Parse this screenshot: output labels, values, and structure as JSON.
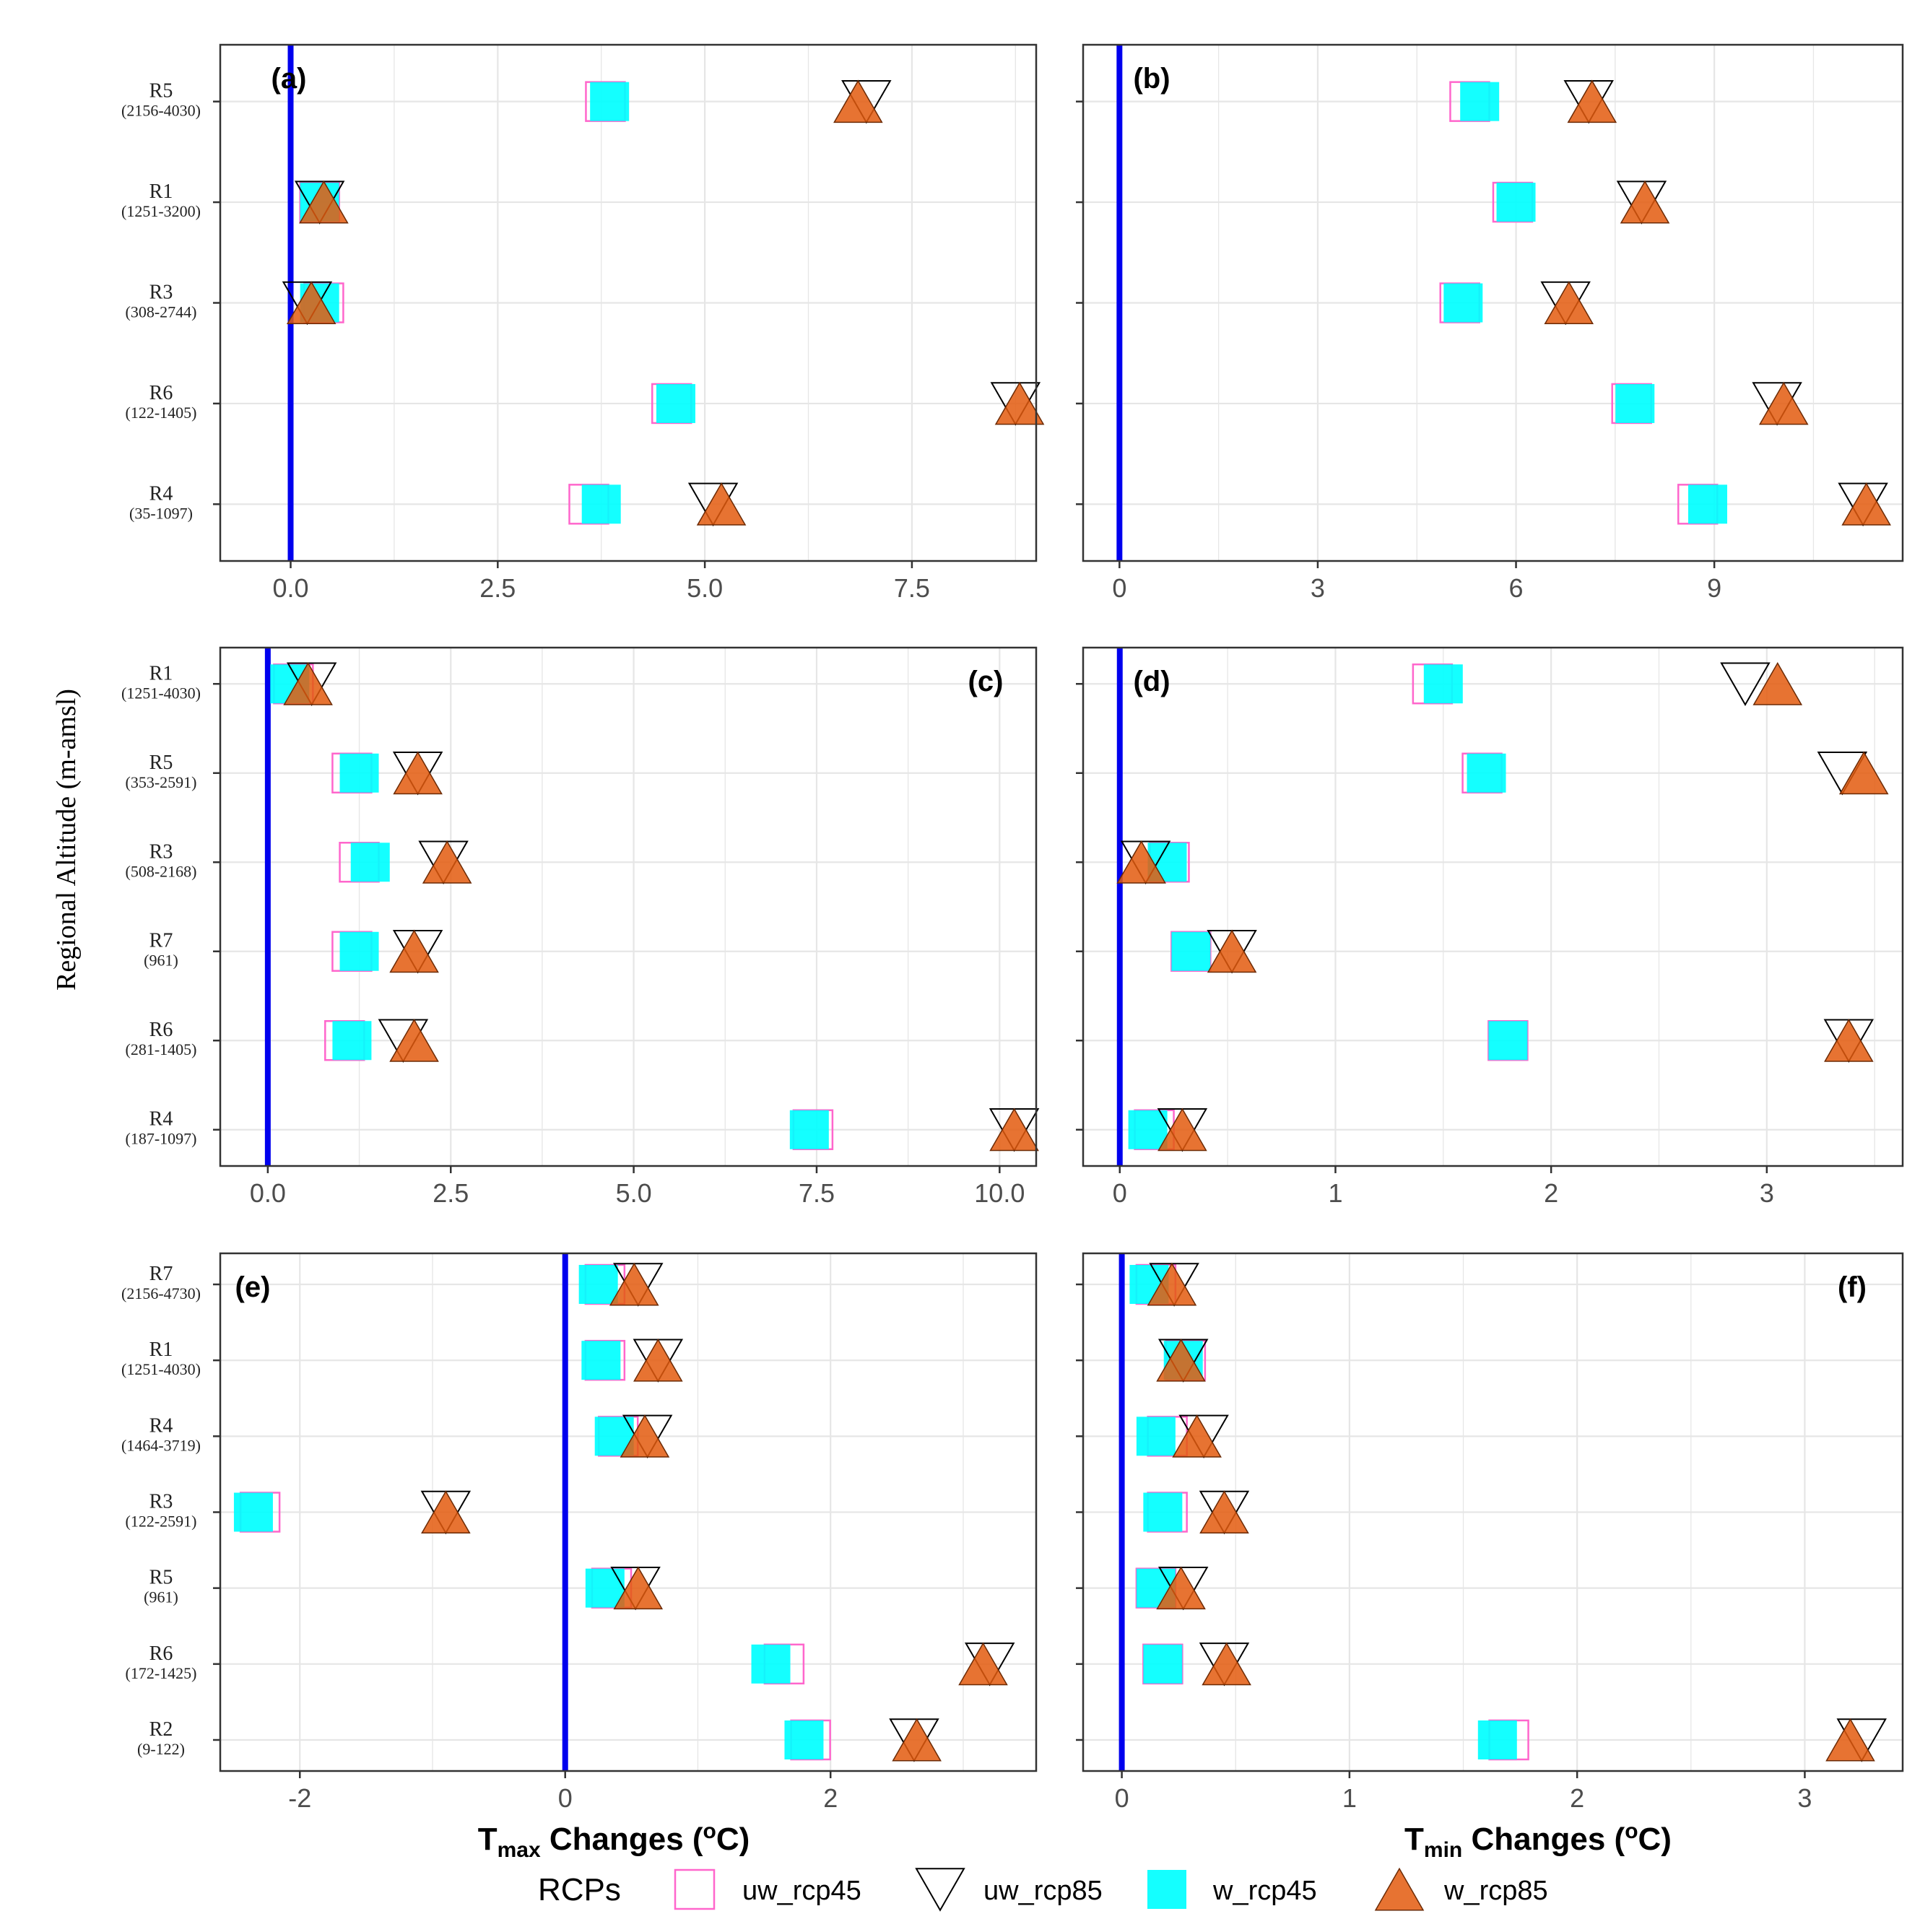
{
  "figure": {
    "y_axis_title": "Regional Altitude  (m-amsl)",
    "x_title_left": {
      "main": "T",
      "sub": "max",
      "rest": " Changes (",
      "sup": "o",
      "end": "C)"
    },
    "x_title_right": {
      "main": "T",
      "sub": "min",
      "rest": " Changes (",
      "sup": "o",
      "end": "C)"
    }
  },
  "legend": {
    "title": "RCPs",
    "items": [
      {
        "key": "uw_rcp45",
        "label": "uw_rcp45"
      },
      {
        "key": "uw_rcp85",
        "label": "uw_rcp85"
      },
      {
        "key": "w_rcp45",
        "label": "w_rcp45"
      },
      {
        "key": "w_rcp85",
        "label": "w_rcp85"
      }
    ]
  },
  "colors": {
    "uw_rcp45": "#ff66cc",
    "uw_rcp85": "#000000",
    "w_rcp45": "#00ffff",
    "w_rcp85": "#e35b0e",
    "zero_line": "#0000ee",
    "grid": "#e6e6e6",
    "frame": "#333333"
  },
  "chart_data": [
    {
      "type": "scatter",
      "panel": "(a)",
      "label_pos": "top-left",
      "xlim": [
        -0.85,
        9.0
      ],
      "xticks": [
        0,
        2.5,
        5,
        7.5
      ],
      "xtick_labels": [
        "0.0",
        "2.5",
        "5.0",
        "7.5"
      ],
      "categories": [
        {
          "name": "R5",
          "range": "(2156-4030)"
        },
        {
          "name": "R1",
          "range": "(1251-3200)"
        },
        {
          "name": "R3",
          "range": "(308-2744)"
        },
        {
          "name": "R6",
          "range": "(122-1405)"
        },
        {
          "name": "R4",
          "range": "(35-1097)"
        }
      ],
      "series": [
        {
          "name": "uw_rcp45",
          "values": [
            3.8,
            0.35,
            0.4,
            4.6,
            3.6
          ]
        },
        {
          "name": "w_rcp45",
          "values": [
            3.85,
            0.35,
            0.35,
            4.65,
            3.75
          ]
        },
        {
          "name": "uw_rcp85",
          "values": [
            6.95,
            0.35,
            0.2,
            8.75,
            5.1
          ]
        },
        {
          "name": "w_rcp85",
          "values": [
            6.85,
            0.4,
            0.25,
            8.8,
            5.2
          ]
        }
      ]
    },
    {
      "type": "scatter",
      "panel": "(b)",
      "label_pos": "top-left",
      "xlim": [
        -0.55,
        11.85
      ],
      "xticks": [
        0,
        3,
        6,
        9
      ],
      "xtick_labels": [
        "0",
        "3",
        "6",
        "9"
      ],
      "categories": [
        {
          "name": "R5",
          "range": ""
        },
        {
          "name": "R1",
          "range": ""
        },
        {
          "name": "R3",
          "range": ""
        },
        {
          "name": "R6",
          "range": ""
        },
        {
          "name": "R4",
          "range": ""
        }
      ],
      "series": [
        {
          "name": "uw_rcp45",
          "values": [
            5.3,
            5.95,
            5.15,
            7.75,
            8.75
          ]
        },
        {
          "name": "w_rcp45",
          "values": [
            5.45,
            6.0,
            5.2,
            7.8,
            8.9
          ]
        },
        {
          "name": "uw_rcp85",
          "values": [
            7.1,
            7.9,
            6.75,
            9.95,
            11.25
          ]
        },
        {
          "name": "w_rcp85",
          "values": [
            7.15,
            7.95,
            6.8,
            10.05,
            11.3
          ]
        }
      ]
    },
    {
      "type": "scatter",
      "panel": "(c)",
      "label_pos": "top-right",
      "xlim": [
        -0.65,
        10.5
      ],
      "xticks": [
        0,
        2.5,
        5,
        7.5,
        10
      ],
      "xtick_labels": [
        "0.0",
        "2.5",
        "5.0",
        "7.5",
        "10.0"
      ],
      "categories": [
        {
          "name": "R1",
          "range": "(1251-4030)"
        },
        {
          "name": "R5",
          "range": "(353-2591)"
        },
        {
          "name": "R3",
          "range": "(508-2168)"
        },
        {
          "name": "R7",
          "range": "(961)"
        },
        {
          "name": "R6",
          "range": "(281-1405)"
        },
        {
          "name": "R4",
          "range": "(187-1097)"
        }
      ],
      "series": [
        {
          "name": "uw_rcp45",
          "values": [
            0.35,
            1.15,
            1.25,
            1.15,
            1.05,
            7.45
          ]
        },
        {
          "name": "w_rcp45",
          "values": [
            0.3,
            1.25,
            1.4,
            1.25,
            1.15,
            7.4
          ]
        },
        {
          "name": "uw_rcp85",
          "values": [
            0.6,
            2.05,
            2.4,
            2.05,
            1.85,
            10.2
          ]
        },
        {
          "name": "w_rcp85",
          "values": [
            0.55,
            2.05,
            2.45,
            2.0,
            2.0,
            10.2
          ]
        }
      ]
    },
    {
      "type": "scatter",
      "panel": "(d)",
      "label_pos": "top-left",
      "xlim": [
        -0.17,
        3.63
      ],
      "xticks": [
        0,
        1,
        2,
        3
      ],
      "xtick_labels": [
        "0",
        "1",
        "2",
        "3"
      ],
      "categories": [
        {
          "name": "R1",
          "range": ""
        },
        {
          "name": "R5",
          "range": ""
        },
        {
          "name": "R3",
          "range": ""
        },
        {
          "name": "R7",
          "range": ""
        },
        {
          "name": "R6",
          "range": ""
        },
        {
          "name": "R4",
          "range": ""
        }
      ],
      "series": [
        {
          "name": "uw_rcp45",
          "values": [
            1.45,
            1.68,
            0.23,
            0.33,
            1.8,
            0.16
          ]
        },
        {
          "name": "w_rcp45",
          "values": [
            1.5,
            1.7,
            0.22,
            0.33,
            1.8,
            0.13
          ]
        },
        {
          "name": "uw_rcp85",
          "values": [
            2.9,
            3.35,
            0.12,
            0.52,
            3.38,
            0.29
          ]
        },
        {
          "name": "w_rcp85",
          "values": [
            3.05,
            3.45,
            0.1,
            0.52,
            3.38,
            0.29
          ]
        }
      ]
    },
    {
      "type": "scatter",
      "panel": "(e)",
      "label_pos": "top-left",
      "xlim": [
        -2.6,
        3.55
      ],
      "xticks": [
        -2,
        0,
        2
      ],
      "xtick_labels": [
        "-2",
        "0",
        "2"
      ],
      "categories": [
        {
          "name": "R7",
          "range": "(2156-4730)"
        },
        {
          "name": "R1",
          "range": "(1251-4030)"
        },
        {
          "name": "R4",
          "range": "(1464-3719)"
        },
        {
          "name": "R3",
          "range": "(122-2591)"
        },
        {
          "name": "R5",
          "range": "(961)"
        },
        {
          "name": "R6",
          "range": "(172-1425)"
        },
        {
          "name": "R2",
          "range": "(9-122)"
        }
      ],
      "series": [
        {
          "name": "uw_rcp45",
          "values": [
            0.3,
            0.3,
            0.4,
            -2.3,
            0.35,
            1.65,
            1.85
          ]
        },
        {
          "name": "w_rcp45",
          "values": [
            0.25,
            0.27,
            0.37,
            -2.35,
            0.3,
            1.55,
            1.8
          ]
        },
        {
          "name": "uw_rcp85",
          "values": [
            0.55,
            0.7,
            0.62,
            -0.9,
            0.53,
            3.2,
            2.63
          ]
        },
        {
          "name": "w_rcp85",
          "values": [
            0.52,
            0.7,
            0.6,
            -0.9,
            0.55,
            3.15,
            2.65
          ]
        }
      ]
    },
    {
      "type": "scatter",
      "panel": "(f)",
      "label_pos": "top-right",
      "xlim": [
        -0.17,
        3.43
      ],
      "xticks": [
        0,
        1,
        2,
        3
      ],
      "xtick_labels": [
        "0",
        "1",
        "2",
        "3"
      ],
      "categories": [
        {
          "name": "R7",
          "range": ""
        },
        {
          "name": "R1",
          "range": ""
        },
        {
          "name": "R4",
          "range": ""
        },
        {
          "name": "R3",
          "range": ""
        },
        {
          "name": "R5",
          "range": ""
        },
        {
          "name": "R6",
          "range": ""
        },
        {
          "name": "R2",
          "range": ""
        }
      ],
      "series": [
        {
          "name": "uw_rcp45",
          "values": [
            0.15,
            0.28,
            0.2,
            0.2,
            0.15,
            0.18,
            1.7
          ]
        },
        {
          "name": "w_rcp45",
          "values": [
            0.12,
            0.27,
            0.15,
            0.18,
            0.15,
            0.18,
            1.65
          ]
        },
        {
          "name": "uw_rcp85",
          "values": [
            0.23,
            0.27,
            0.36,
            0.45,
            0.27,
            0.45,
            3.25
          ]
        },
        {
          "name": "w_rcp85",
          "values": [
            0.22,
            0.26,
            0.33,
            0.45,
            0.26,
            0.46,
            3.2
          ]
        }
      ]
    }
  ]
}
